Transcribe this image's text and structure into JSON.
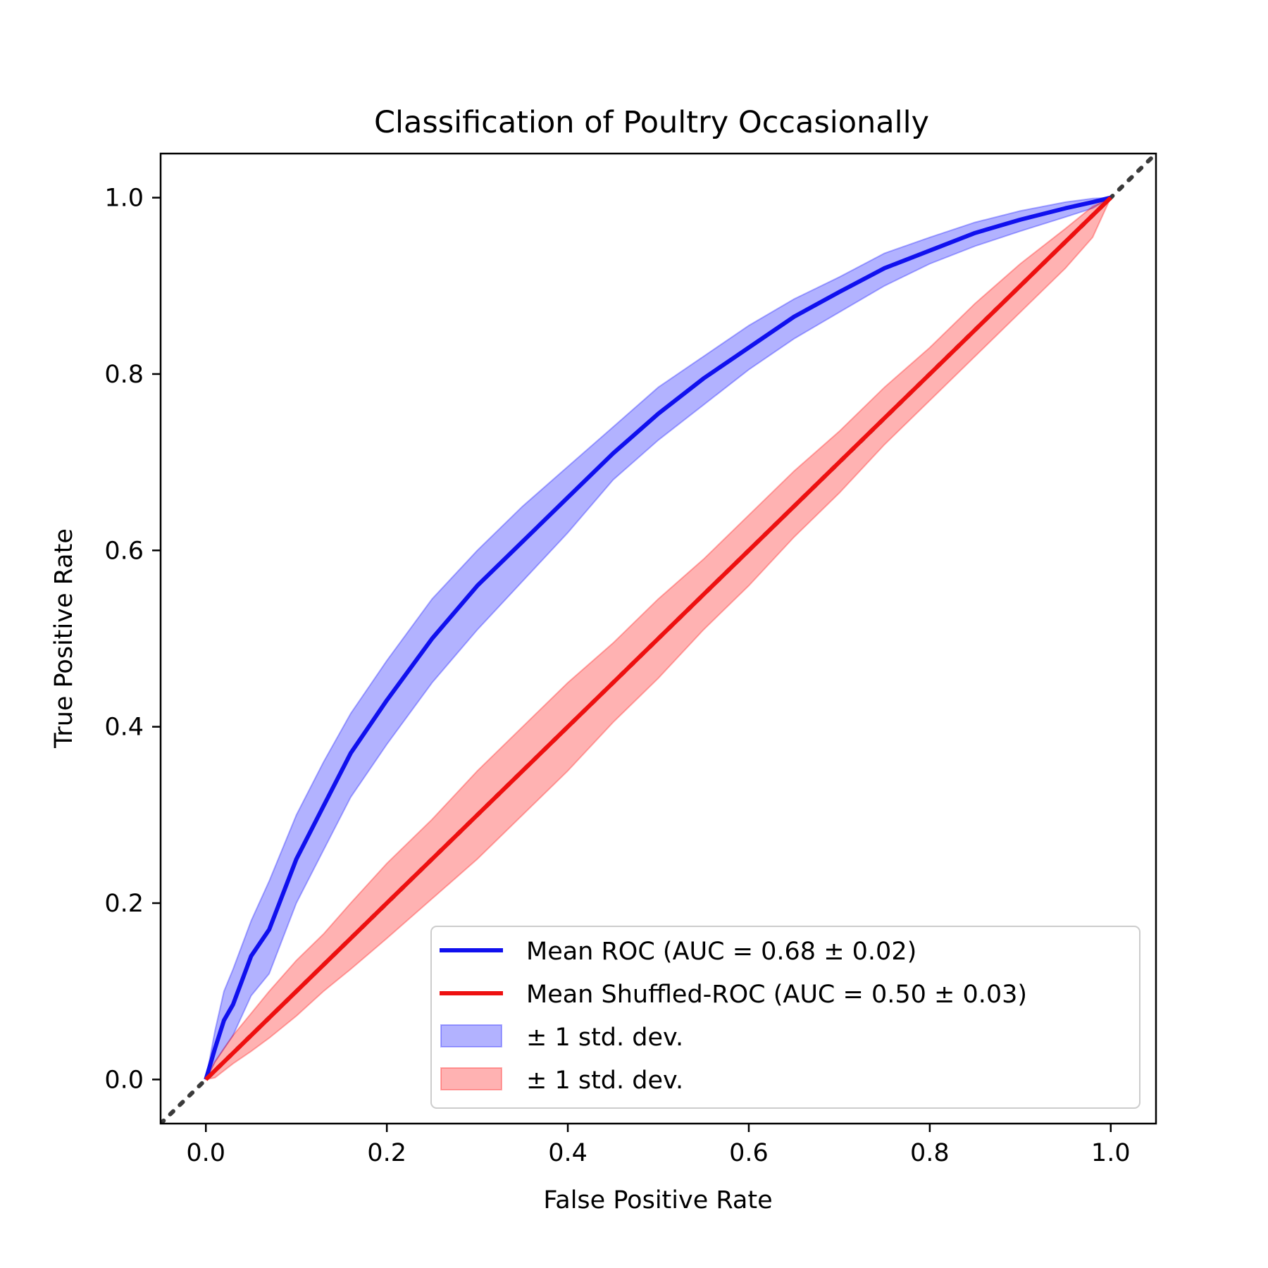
{
  "chart_data": {
    "type": "line",
    "title": "Classification of Poultry Occasionally",
    "xlabel": "False Positive Rate",
    "ylabel": "True Positive Rate",
    "xlim": [
      -0.05,
      1.05
    ],
    "ylim": [
      -0.05,
      1.05
    ],
    "x_ticks": [
      "0.0",
      "0.2",
      "0.4",
      "0.6",
      "0.8",
      "1.0"
    ],
    "y_ticks": [
      "0.0",
      "0.2",
      "0.4",
      "0.6",
      "0.8",
      "1.0"
    ],
    "grid": false,
    "legend_position": "lower-right",
    "x": [
      0.0,
      0.01,
      0.02,
      0.03,
      0.05,
      0.07,
      0.1,
      0.13,
      0.16,
      0.2,
      0.25,
      0.3,
      0.35,
      0.4,
      0.45,
      0.5,
      0.55,
      0.6,
      0.65,
      0.7,
      0.75,
      0.8,
      0.85,
      0.9,
      0.95,
      0.98,
      1.0
    ],
    "series": [
      {
        "name": "Mean ROC (AUC = 0.68 ± 0.02)",
        "color": "#1010ee",
        "values": [
          0.0,
          0.035,
          0.067,
          0.085,
          0.14,
          0.17,
          0.25,
          0.31,
          0.37,
          0.43,
          0.5,
          0.56,
          0.61,
          0.66,
          0.71,
          0.755,
          0.795,
          0.83,
          0.865,
          0.893,
          0.92,
          0.94,
          0.96,
          0.975,
          0.988,
          0.995,
          1.0
        ]
      },
      {
        "name": "Mean Shuffled-ROC (AUC = 0.50 ± 0.03)",
        "color": "#ee1010",
        "values": [
          0.0,
          0.01,
          0.02,
          0.03,
          0.05,
          0.07,
          0.1,
          0.13,
          0.16,
          0.2,
          0.25,
          0.3,
          0.35,
          0.4,
          0.45,
          0.5,
          0.55,
          0.6,
          0.65,
          0.7,
          0.75,
          0.8,
          0.85,
          0.9,
          0.95,
          0.98,
          1.0
        ]
      }
    ],
    "bands": [
      {
        "name": "± 1 std. dev.",
        "color": "#0000ff",
        "lower": [
          0.0,
          0.02,
          0.035,
          0.05,
          0.095,
          0.12,
          0.2,
          0.26,
          0.32,
          0.38,
          0.45,
          0.51,
          0.565,
          0.62,
          0.68,
          0.725,
          0.765,
          0.805,
          0.84,
          0.87,
          0.9,
          0.925,
          0.945,
          0.962,
          0.978,
          0.988,
          1.0
        ],
        "upper": [
          0.0,
          0.055,
          0.1,
          0.125,
          0.18,
          0.225,
          0.3,
          0.36,
          0.415,
          0.475,
          0.545,
          0.6,
          0.65,
          0.695,
          0.74,
          0.785,
          0.82,
          0.855,
          0.885,
          0.91,
          0.937,
          0.955,
          0.972,
          0.985,
          0.995,
          0.999,
          1.0
        ]
      },
      {
        "name": "± 1 std. dev.",
        "color": "#ff0000",
        "lower": [
          0.0,
          0.002,
          0.01,
          0.018,
          0.032,
          0.047,
          0.072,
          0.1,
          0.125,
          0.16,
          0.205,
          0.25,
          0.3,
          0.35,
          0.405,
          0.455,
          0.51,
          0.56,
          0.615,
          0.665,
          0.72,
          0.77,
          0.82,
          0.87,
          0.92,
          0.955,
          1.0
        ],
        "upper": [
          0.0,
          0.02,
          0.035,
          0.05,
          0.075,
          0.1,
          0.135,
          0.165,
          0.2,
          0.245,
          0.295,
          0.35,
          0.4,
          0.45,
          0.495,
          0.545,
          0.59,
          0.64,
          0.69,
          0.735,
          0.785,
          0.83,
          0.88,
          0.925,
          0.965,
          0.99,
          1.0
        ]
      }
    ],
    "reference_line": {
      "style": "dotted",
      "color": "#3a3a3a"
    }
  }
}
